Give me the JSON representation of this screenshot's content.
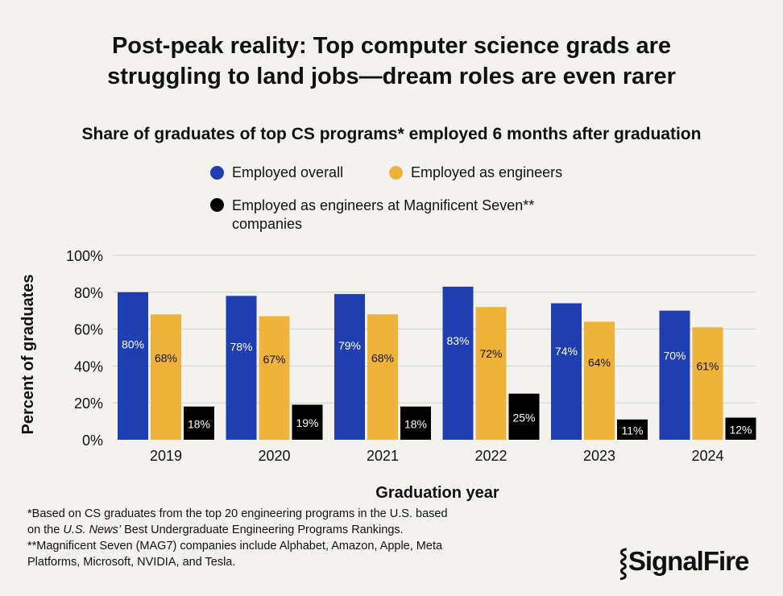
{
  "title_line1": "Post-peak reality: Top computer science grads are",
  "title_line2": "struggling to land jobs—dream roles are even rarer",
  "footnote": {
    "line1": "*Based on CS graduates from the top 20 engineering programs in the U.S. based",
    "line2_pre": "on the ",
    "line2_italic": "U.S. News’",
    "line2_post": " Best Undergraduate Engineering Programs Rankings.",
    "line3": "**Magnificent Seven (MAG7) companies include Alphabet, Amazon, Apple, Meta",
    "line4": "Platforms, Microsoft, NVIDIA, and Tesla."
  },
  "logo": {
    "mark": "⸾",
    "text": "SignalFire"
  },
  "chart_data": {
    "type": "bar",
    "title": "Share of graduates of top CS programs* employed 6 months after graduation",
    "xlabel": "Graduation year",
    "ylabel": "Percent of graduates",
    "ylim": [
      0,
      100
    ],
    "yticks": [
      "0%",
      "20%",
      "40%",
      "60%",
      "80%",
      "100%"
    ],
    "grid": true,
    "legend_position": "top",
    "categories": [
      "2019",
      "2020",
      "2021",
      "2022",
      "2023",
      "2024"
    ],
    "series": [
      {
        "name": "Employed overall",
        "color": "#1f3eb0",
        "label_color": "#ffffff",
        "values": [
          80,
          78,
          79,
          83,
          74,
          70
        ],
        "labels": [
          "80%",
          "78%",
          "79%",
          "83%",
          "74%",
          "70%"
        ]
      },
      {
        "name": "Employed as engineers",
        "color": "#f0b33a",
        "label_color": "#111111",
        "values": [
          68,
          67,
          68,
          72,
          64,
          61
        ],
        "labels": [
          "68%",
          "67%",
          "68%",
          "72%",
          "64%",
          "61%"
        ]
      },
      {
        "name": "Employed as engineers at Magnificent Seven** companies",
        "name_line1": "Employed as engineers at Magnificent Seven**",
        "name_line2": "companies",
        "color": "#000000",
        "label_color": "#ffffff",
        "values": [
          18,
          19,
          18,
          25,
          11,
          12
        ],
        "labels": [
          "18%",
          "19%",
          "18%",
          "25%",
          "11%",
          "12%"
        ]
      }
    ]
  }
}
